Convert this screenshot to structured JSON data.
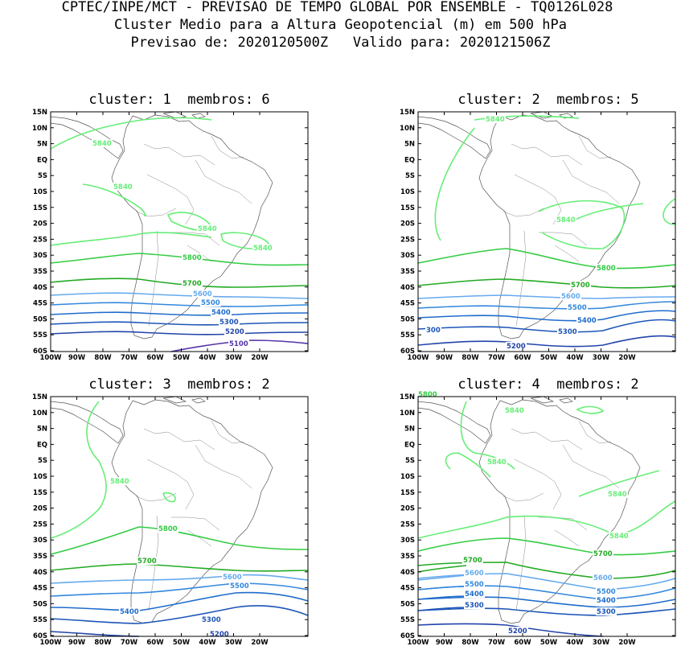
{
  "header": {
    "line1": "CPTEC/INPE/MCT - PREVISAO DE TEMPO GLOBAL POR ENSEMBLE - TQ0126L028",
    "line2": "Cluster Medio para a Altura Geopotencial (m) em 500 hPa",
    "line3": "Previsao de: 2020120500Z   Valido para: 2020121506Z"
  },
  "axes": {
    "lat_labels": [
      "15N",
      "10N",
      "5N",
      "EQ",
      "5S",
      "10S",
      "15S",
      "20S",
      "25S",
      "30S",
      "35S",
      "40S",
      "45S",
      "50S",
      "55S",
      "60S"
    ],
    "lon_labels": [
      "100W",
      "90W",
      "80W",
      "70W",
      "60W",
      "50W",
      "40W",
      "30W",
      "20W"
    ]
  },
  "colors": {
    "c5840": "#66ee77",
    "c5800": "#33cc44",
    "c5700": "#22aa22",
    "c5600": "#66aaee",
    "c5500": "#3388dd",
    "c5400": "#1f6ccc",
    "c5300": "#1c55b8",
    "c5200": "#2244aa",
    "c5100": "#5533aa"
  },
  "panels": [
    {
      "title": "cluster: 1  membros: 6",
      "contour_labels": [
        {
          "text": "5840",
          "color": "c5840"
        },
        {
          "text": "5840",
          "color": "c5840"
        },
        {
          "text": "5840",
          "color": "c5840"
        },
        {
          "text": "5840",
          "color": "c5840"
        },
        {
          "text": "5800",
          "color": "c5800"
        },
        {
          "text": "5700",
          "color": "c5700"
        },
        {
          "text": "5600",
          "color": "c5600"
        },
        {
          "text": "5500",
          "color": "c5500"
        },
        {
          "text": "5400",
          "color": "c5400"
        },
        {
          "text": "5300",
          "color": "c5300"
        },
        {
          "text": "5200",
          "color": "c5200"
        },
        {
          "text": "5100",
          "color": "c5100"
        }
      ]
    },
    {
      "title": "cluster: 2  membros: 5",
      "contour_labels": [
        {
          "text": "5840",
          "color": "c5840"
        },
        {
          "text": "5840",
          "color": "c5840"
        },
        {
          "text": "5800",
          "color": "c5800"
        },
        {
          "text": "5700",
          "color": "c5700"
        },
        {
          "text": "5600",
          "color": "c5600"
        },
        {
          "text": "5500",
          "color": "c5500"
        },
        {
          "text": "5400",
          "color": "c5400"
        },
        {
          "text": "5300",
          "color": "c5300"
        },
        {
          "text": "300",
          "color": "c5300"
        },
        {
          "text": "5200",
          "color": "c5200"
        }
      ]
    },
    {
      "title": "cluster: 3  membros: 2",
      "contour_labels": [
        {
          "text": "5840",
          "color": "c5840"
        },
        {
          "text": "5800",
          "color": "c5800"
        },
        {
          "text": "5700",
          "color": "c5700"
        },
        {
          "text": "5600",
          "color": "c5600"
        },
        {
          "text": "5500",
          "color": "c5500"
        },
        {
          "text": "5400",
          "color": "c5400"
        },
        {
          "text": "5300",
          "color": "c5300"
        },
        {
          "text": "5200",
          "color": "c5200"
        }
      ]
    },
    {
      "title": "cluster: 4  membros: 2",
      "contour_labels": [
        {
          "text": "5840",
          "color": "c5840"
        },
        {
          "text": "5840",
          "color": "c5840"
        },
        {
          "text": "5840",
          "color": "c5840"
        },
        {
          "text": "5840",
          "color": "c5840"
        },
        {
          "text": "5800",
          "color": "c5800"
        },
        {
          "text": "5700",
          "color": "c5700"
        },
        {
          "text": "5700",
          "color": "c5700"
        },
        {
          "text": "5600",
          "color": "c5600"
        },
        {
          "text": "5600",
          "color": "c5600"
        },
        {
          "text": "5500",
          "color": "c5500"
        },
        {
          "text": "5500",
          "color": "c5500"
        },
        {
          "text": "5400",
          "color": "c5400"
        },
        {
          "text": "5400",
          "color": "c5400"
        },
        {
          "text": "5300",
          "color": "c5300"
        },
        {
          "text": "5300",
          "color": "c5300"
        },
        {
          "text": "5200",
          "color": "c5200"
        }
      ]
    }
  ]
}
